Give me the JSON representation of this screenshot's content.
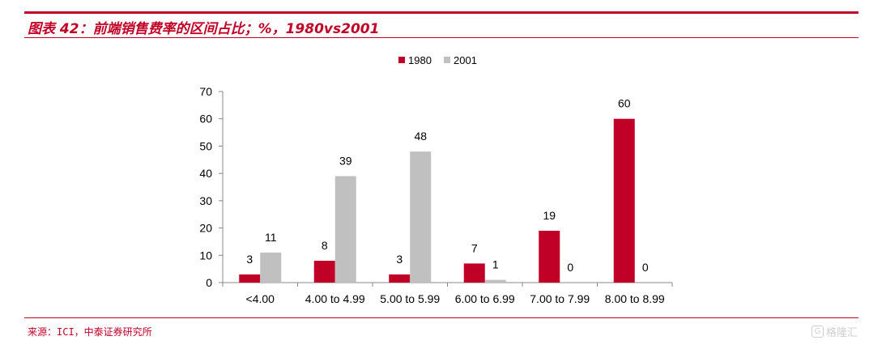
{
  "figure": {
    "title": "图表 42：前端销售费率的区间占比；%，1980vs2001",
    "source": "来源：ICI，中泰证券研究所",
    "watermark": "格隆汇",
    "watermark_icon": "g-logo-icon"
  },
  "colors": {
    "accent": "#c00027",
    "series_1980": "#c00027",
    "series_2001": "#c0c0c0",
    "axis": "#888888"
  },
  "chart_data": {
    "type": "bar",
    "title": "",
    "xlabel": "",
    "ylabel": "",
    "ylim": [
      0,
      70
    ],
    "yticks": [
      0,
      10,
      20,
      30,
      40,
      50,
      60,
      70
    ],
    "grid": false,
    "legend_position": "top-center",
    "categories": [
      "<4.00",
      "4.00 to 4.99",
      "5.00 to 5.99",
      "6.00 to 6.99",
      "7.00 to 7.99",
      "8.00 to 8.99"
    ],
    "series": [
      {
        "name": "1980",
        "values": [
          3,
          8,
          3,
          7,
          19,
          60
        ]
      },
      {
        "name": "2001",
        "values": [
          11,
          39,
          48,
          1,
          0,
          0
        ]
      }
    ]
  }
}
